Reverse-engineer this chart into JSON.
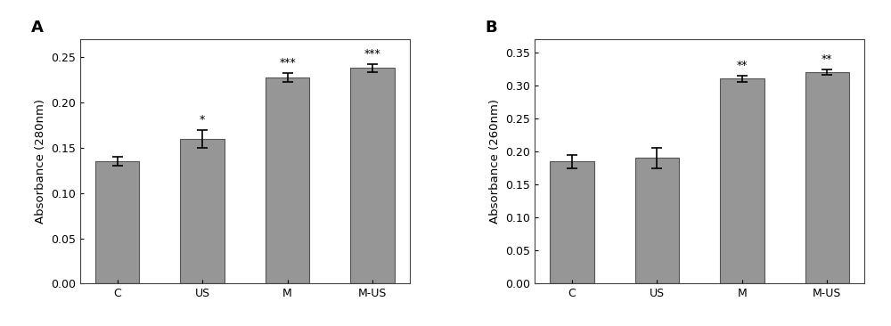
{
  "panel_A": {
    "categories": [
      "C",
      "US",
      "M",
      "M-US"
    ],
    "values": [
      0.135,
      0.16,
      0.228,
      0.238
    ],
    "errors": [
      0.005,
      0.01,
      0.005,
      0.004
    ],
    "significance": [
      "",
      "*",
      "***",
      "***"
    ],
    "ylabel": "Absorbance (280nm)",
    "ylim": [
      0,
      0.27
    ],
    "yticks": [
      0.0,
      0.05,
      0.1,
      0.15,
      0.2,
      0.25
    ],
    "label": "A"
  },
  "panel_B": {
    "categories": [
      "C",
      "US",
      "M",
      "M-US"
    ],
    "values": [
      0.185,
      0.19,
      0.31,
      0.32
    ],
    "errors": [
      0.01,
      0.015,
      0.005,
      0.004
    ],
    "significance": [
      "",
      "",
      "**",
      "**"
    ],
    "ylabel": "Absorbance (260nm)",
    "ylim": [
      0,
      0.37
    ],
    "yticks": [
      0.0,
      0.05,
      0.1,
      0.15,
      0.2,
      0.25,
      0.3,
      0.35
    ],
    "label": "B"
  },
  "bar_color": "#969696",
  "bar_edgecolor": "#555555",
  "error_color": "black",
  "sig_fontsize": 9,
  "label_fontsize": 13,
  "tick_fontsize": 9,
  "ylabel_fontsize": 9.5,
  "bar_width": 0.52,
  "figure_facecolor": "white",
  "axes_facecolor": "white"
}
